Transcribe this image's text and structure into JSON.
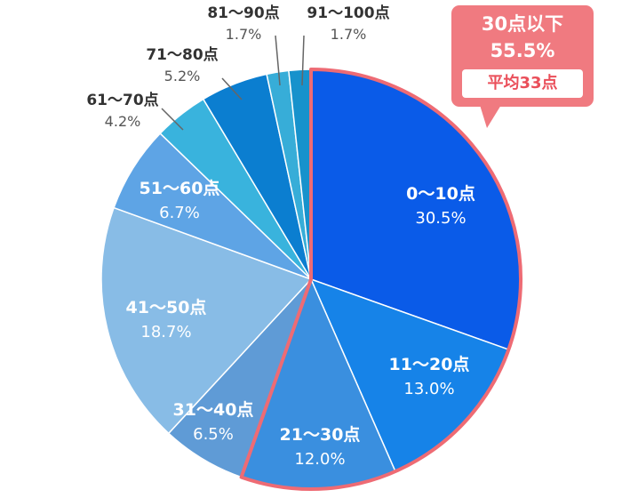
{
  "chart_data": {
    "type": "pie",
    "start_angle_deg": 0,
    "direction": "clockwise",
    "slices": [
      {
        "label": "0〜10点",
        "value": 30.5,
        "value_label": "30.5%",
        "color": "#0a5be8"
      },
      {
        "label": "11〜20点",
        "value": 13.0,
        "value_label": "13.0%",
        "color": "#1683e8"
      },
      {
        "label": "21〜30点",
        "value": 12.0,
        "value_label": "12.0%",
        "color": "#3a8fdf"
      },
      {
        "label": "31〜40点",
        "value": 6.5,
        "value_label": "6.5%",
        "color": "#5f9bd6"
      },
      {
        "label": "41〜50点",
        "value": 18.7,
        "value_label": "18.7%",
        "color": "#88bce6"
      },
      {
        "label": "51〜60点",
        "value": 6.7,
        "value_label": "6.7%",
        "color": "#5ea4e5"
      },
      {
        "label": "61〜70点",
        "value": 4.2,
        "value_label": "4.2%",
        "color": "#39b3dd"
      },
      {
        "label": "71〜80点",
        "value": 5.2,
        "value_label": "5.2%",
        "color": "#0b7ed0"
      },
      {
        "label": "81〜90点",
        "value": 1.7,
        "value_label": "1.7%",
        "color": "#37add8"
      },
      {
        "label": "91〜100点",
        "value": 1.7,
        "value_label": "1.7%",
        "color": "#1792cc"
      }
    ],
    "highlight": {
      "slices": [
        "0〜10点",
        "11〜20点",
        "21〜30点"
      ],
      "outline_color": "#ee6b74",
      "lines": [
        "30点以下",
        "55.5%"
      ],
      "badge": "平均33点"
    }
  }
}
